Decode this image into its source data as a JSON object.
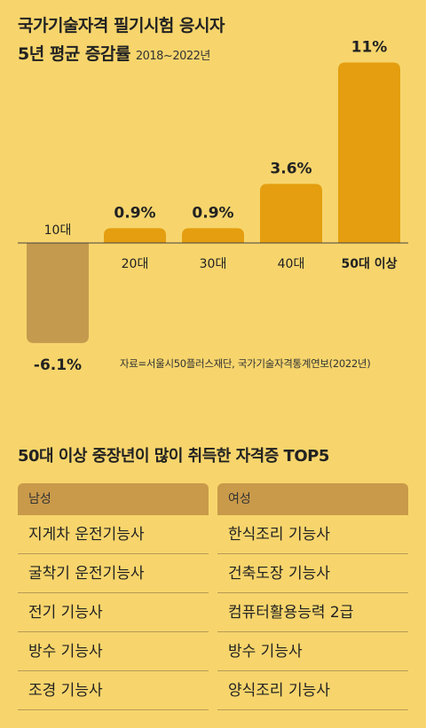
{
  "title_line1": "국가기술자격 필기시험 응시자",
  "title_line2": "5년 평균 증감률",
  "period": "2018~2022년",
  "source": "자료=서울시50플러스재단, 국가기술자격통계연보(2022년)",
  "colors": {
    "background": "#f7d56c",
    "bar_positive": "#e49e0f",
    "bar_negative": "#c49a4e",
    "header": "#c99a4a"
  },
  "chart_data": {
    "type": "bar",
    "categories": [
      "10대",
      "20대",
      "30대",
      "40대",
      "50대 이상"
    ],
    "values": [
      -6.1,
      0.9,
      0.9,
      3.6,
      11
    ],
    "value_labels": [
      "-6.1%",
      "0.9%",
      "0.9%",
      "3.6%",
      "11%"
    ],
    "title": "국가기술자격 필기시험 응시자 5년 평균 증감률",
    "xlabel": "",
    "ylabel": "",
    "ylim": [
      -6.1,
      11
    ],
    "grid": false,
    "highlight_category": "50대 이상"
  },
  "top5": {
    "title": "50대 이상 중장년이 많이 취득한 자격증 TOP5",
    "headers": [
      "남성",
      "여성"
    ],
    "male": [
      "지게차 운전기능사",
      "굴착기 운전기능사",
      "전기 기능사",
      "방수 기능사",
      "조경 기능사"
    ],
    "female": [
      "한식조리 기능사",
      "건축도장 기능사",
      "컴퓨터활용능력 2급",
      "방수 기능사",
      "양식조리 기능사"
    ]
  }
}
